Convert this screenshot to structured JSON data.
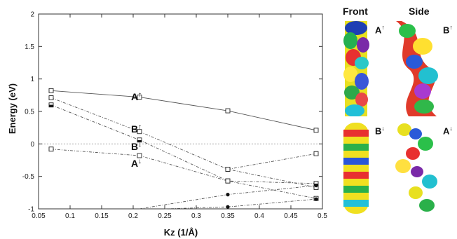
{
  "chart_data": {
    "type": "line",
    "title": "",
    "xlabel": "Kz (1/Å)",
    "ylabel": "Energy (eV)",
    "xlim": [
      0.05,
      0.5
    ],
    "ylim": [
      -1,
      2
    ],
    "xticks": [
      "0.05",
      "0.1",
      "0.15",
      "0.2",
      "0.25",
      "0.3",
      "0.35",
      "0.4",
      "0.45",
      "0.5"
    ],
    "yticks": [
      "-1",
      "-0.5",
      "0",
      "0.5",
      "1",
      "1.5",
      "2"
    ],
    "grid": false,
    "reference_line_y": 0,
    "series": [
      {
        "x": [
          0.07,
          0.21,
          0.35,
          0.49
        ],
        "y": [
          0.82,
          0.72,
          0.51,
          0.21
        ],
        "line": "solid",
        "marker": "open-square"
      },
      {
        "x": [
          0.07,
          0.21,
          0.35,
          0.49
        ],
        "y": [
          0.71,
          0.19,
          -0.39,
          -0.67
        ],
        "line": "dashed",
        "marker": "open-square"
      },
      {
        "x": [
          0.07,
          0.21,
          0.35,
          0.49
        ],
        "y": [
          0.6,
          0.06,
          -0.57,
          -0.61
        ],
        "line": "dashed",
        "marker": "half-square"
      },
      {
        "x": [
          0.07,
          0.21,
          0.35,
          0.49
        ],
        "y": [
          -0.08,
          -0.18,
          -0.57,
          -0.84
        ],
        "line": "dashed",
        "marker": "open-square"
      },
      {
        "x": [
          0.35,
          0.49
        ],
        "y": [
          -0.39,
          -0.15
        ],
        "line": "dashed",
        "marker": "open-square"
      },
      {
        "x": [
          0.21,
          0.35,
          0.49
        ],
        "y": [
          -1.0,
          -0.78,
          -0.64
        ],
        "line": "dashed",
        "marker": "filled"
      },
      {
        "x": [
          0.25,
          0.35,
          0.49
        ],
        "y": [
          -1.0,
          -0.97,
          -0.85
        ],
        "line": "dashed",
        "marker": "filled"
      }
    ],
    "annotations": [
      {
        "text": "A",
        "spin": "↑",
        "x": 0.21,
        "y": 0.74
      },
      {
        "text": "B",
        "spin": "↑",
        "x": 0.21,
        "y": 0.24
      },
      {
        "text": "B",
        "spin": "↓",
        "x": 0.21,
        "y": -0.03
      },
      {
        "text": "A",
        "spin": "↓",
        "x": 0.21,
        "y": -0.29
      }
    ]
  },
  "panels": {
    "headers": {
      "front": "Front",
      "side": "Side"
    },
    "top_left": {
      "text": "A",
      "spin": "↑"
    },
    "top_right": {
      "text": "B",
      "spin": "↑"
    },
    "bottom_left": {
      "text": "B",
      "spin": "↓"
    },
    "bottom_right": {
      "text": "A",
      "spin": "↓"
    }
  }
}
